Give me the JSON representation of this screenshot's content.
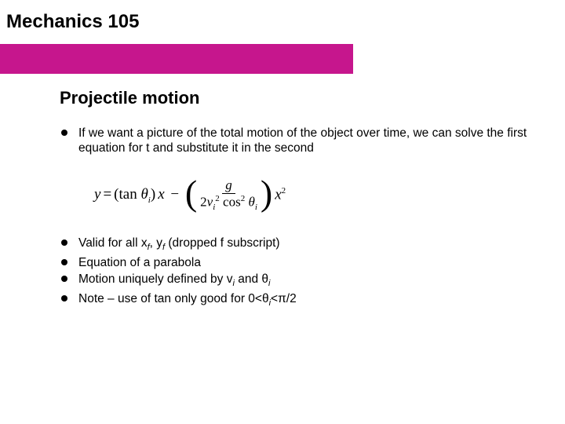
{
  "header": {
    "title": "Mechanics 105",
    "bar_color": "#c6168d"
  },
  "slide": {
    "subtitle": "Projectile motion",
    "bullets_top": [
      "If we want a picture of the total motion of the object over time, we can solve the first equation for t and substitute it in the second"
    ],
    "equation": {
      "lhs": "y",
      "term1_inner": "tan θᵢ",
      "term1_after": "x",
      "frac_num": "g",
      "frac_den_coeff": "2",
      "frac_den_v": "v",
      "frac_den_v_sub": "i",
      "frac_den_v_sup": "2",
      "frac_den_cos": "cos",
      "frac_den_cos_sup": "2",
      "frac_den_theta": "θ",
      "frac_den_theta_sub": "i",
      "term2_after": "x",
      "term2_after_sup": "2"
    },
    "bullets_bottom": [
      {
        "pre": "Valid for all x",
        "sub1": "f",
        "mid": ", y",
        "sub2": "f",
        "post": " (dropped f subscript)"
      },
      {
        "pre": "Equation of a parabola"
      },
      {
        "pre": "Motion uniquely defined by v",
        "sub1": "i",
        "mid": " and θ",
        "sub2": "i",
        "post": ""
      },
      {
        "pre": "Note – use of tan only good for 0<θ",
        "sub1": "i",
        "mid": "<π/2",
        "post": ""
      }
    ]
  },
  "style": {
    "background": "#ffffff",
    "text_color": "#000000",
    "title_fontsize": 24,
    "subtitle_fontsize": 22,
    "body_fontsize": 15.5,
    "bullet_color": "#000000"
  }
}
